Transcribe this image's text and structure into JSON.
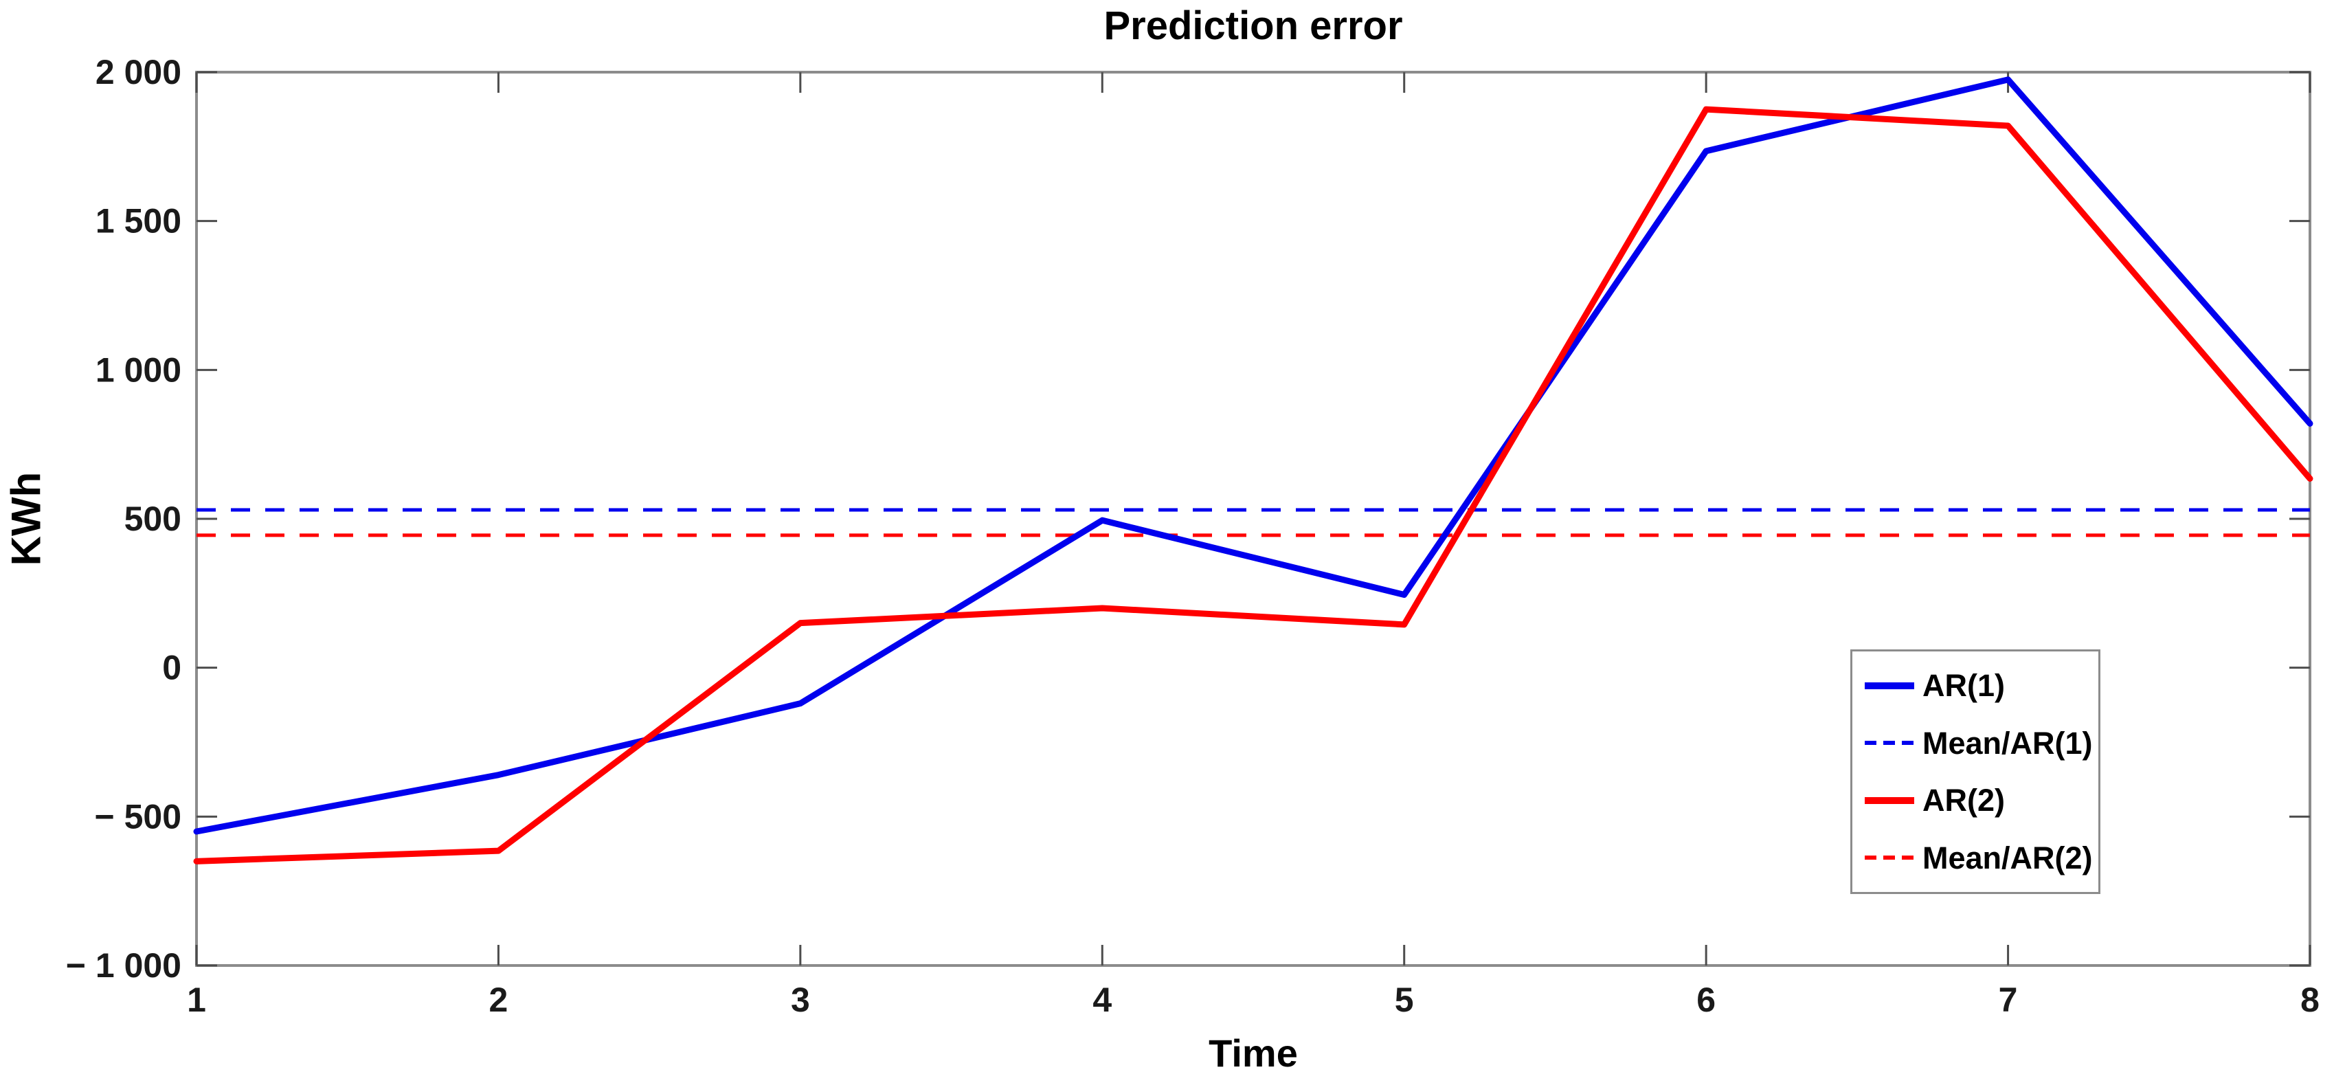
{
  "title": "Prediction error",
  "axis": {
    "xlabel": "Time",
    "ylabel": "KWh",
    "x_tick_labels": [
      "1",
      "2",
      "3",
      "4",
      "5",
      "6",
      "7",
      "8"
    ],
    "x_tick_values": [
      1,
      2,
      3,
      4,
      5,
      6,
      7,
      8
    ],
    "y_tick_labels": [
      "2 000",
      "1 500",
      "1 000",
      "500",
      "0",
      "− 500",
      "− 1 000"
    ],
    "y_tick_values": [
      2000,
      1500,
      1000,
      500,
      0,
      -500,
      -1000
    ]
  },
  "colors": {
    "ar1": "#0000ee",
    "ar2": "#ff0000",
    "spine": "#8c8c8c",
    "tick": "#4d4d4d",
    "text": "#1a1a1a"
  },
  "legend": {
    "entries": [
      {
        "label": "AR(1)",
        "color": "#0000ee",
        "style": "solid"
      },
      {
        "label": "Mean/AR(1)",
        "color": "#0000ee",
        "style": "dashed"
      },
      {
        "label": "AR(2)",
        "color": "#ff0000",
        "style": "solid"
      },
      {
        "label": "Mean/AR(2)",
        "color": "#ff0000",
        "style": "dashed"
      }
    ]
  },
  "chart_data": {
    "type": "line",
    "title": "Prediction error",
    "xlabel": "Time",
    "ylabel": "KWh",
    "x": [
      1,
      2,
      3,
      4,
      5,
      6,
      7,
      8
    ],
    "series": [
      {
        "name": "AR(1)",
        "color": "#0000ee",
        "style": "solid",
        "values": [
          -550,
          -360,
          -120,
          495,
          245,
          1735,
          1975,
          820
        ]
      },
      {
        "name": "Mean/AR(1)",
        "color": "#0000ee",
        "style": "dashed",
        "mean_value": 530
      },
      {
        "name": "AR(2)",
        "color": "#ff0000",
        "style": "solid",
        "values": [
          -650,
          -615,
          150,
          200,
          145,
          1875,
          1820,
          635
        ]
      },
      {
        "name": "Mean/AR(2)",
        "color": "#ff0000",
        "style": "dashed",
        "mean_value": 445
      }
    ],
    "xlim": [
      1,
      8
    ],
    "ylim": [
      -1000,
      2000
    ],
    "grid": false,
    "legend_position": "bottom-right"
  }
}
